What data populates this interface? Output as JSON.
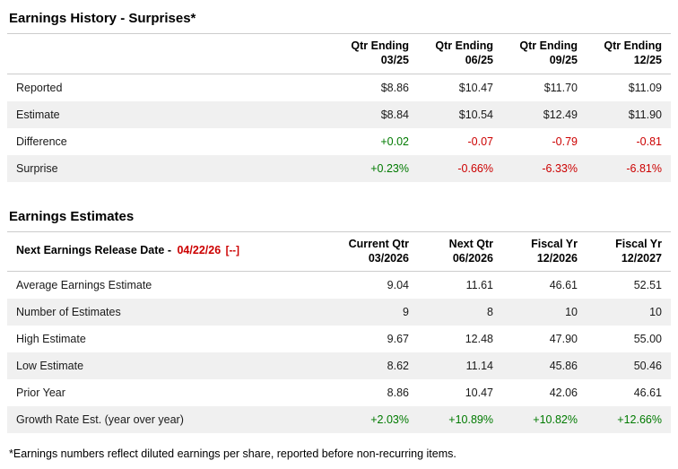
{
  "history": {
    "title": "Earnings History - Surprises*",
    "columns": [
      {
        "line1": "Qtr Ending",
        "line2": "03/25"
      },
      {
        "line1": "Qtr Ending",
        "line2": "06/25"
      },
      {
        "line1": "Qtr Ending",
        "line2": "09/25"
      },
      {
        "line1": "Qtr Ending",
        "line2": "12/25"
      }
    ],
    "rows": [
      {
        "label": "Reported",
        "values": [
          "$8.86",
          "$10.47",
          "$11.70",
          "$11.09"
        ]
      },
      {
        "label": "Estimate",
        "values": [
          "$8.84",
          "$10.54",
          "$12.49",
          "$11.90"
        ]
      },
      {
        "label": "Difference",
        "values": [
          "+0.02",
          "-0.07",
          "-0.79",
          "-0.81"
        ],
        "tones": [
          "pos",
          "neg",
          "neg",
          "neg"
        ]
      },
      {
        "label": "Surprise",
        "values": [
          "+0.23%",
          "-0.66%",
          "-6.33%",
          "-6.81%"
        ],
        "tones": [
          "pos",
          "neg",
          "neg",
          "neg"
        ]
      }
    ]
  },
  "estimates": {
    "title": "Earnings Estimates",
    "release_label": "Next Earnings Release Date -",
    "release_date": "04/22/26",
    "release_toggle": "[--]",
    "columns": [
      {
        "line1": "Current Qtr",
        "line2": "03/2026"
      },
      {
        "line1": "Next Qtr",
        "line2": "06/2026"
      },
      {
        "line1": "Fiscal Yr",
        "line2": "12/2026"
      },
      {
        "line1": "Fiscal Yr",
        "line2": "12/2027"
      }
    ],
    "rows": [
      {
        "label": "Average Earnings Estimate",
        "values": [
          "9.04",
          "11.61",
          "46.61",
          "52.51"
        ]
      },
      {
        "label": "Number of Estimates",
        "values": [
          "9",
          "8",
          "10",
          "10"
        ]
      },
      {
        "label": "High Estimate",
        "values": [
          "9.67",
          "12.48",
          "47.90",
          "55.00"
        ]
      },
      {
        "label": "Low Estimate",
        "values": [
          "8.62",
          "11.14",
          "45.86",
          "50.46"
        ]
      },
      {
        "label": "Prior Year",
        "values": [
          "8.86",
          "10.47",
          "42.06",
          "46.61"
        ]
      },
      {
        "label": "Growth Rate Est. (year over year)",
        "values": [
          "+2.03%",
          "+10.89%",
          "+10.82%",
          "+12.66%"
        ],
        "tones": [
          "pos",
          "pos",
          "pos",
          "pos"
        ]
      }
    ]
  },
  "colors": {
    "positive": "#007a00",
    "negative": "#cc0000",
    "row_alt": "#f0f0f0"
  },
  "footnote": "*Earnings numbers reflect diluted earnings per share, reported before non-recurring items."
}
